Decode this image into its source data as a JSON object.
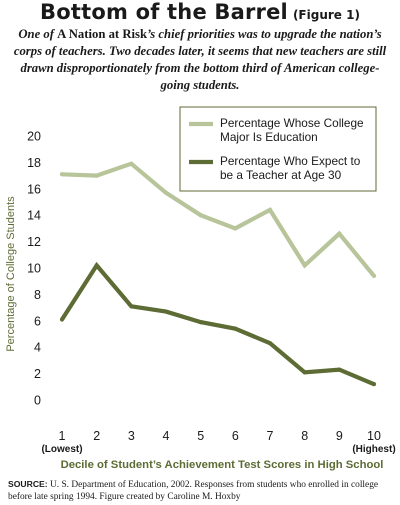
{
  "header": {
    "title": "Bottom of the Barrel",
    "figure": "(Figure 1)",
    "subtitle_pre": "One of ",
    "subtitle_em": "A Nation at Risk",
    "subtitle_post": "’s chief priorities was to upgrade the nation’s corps of teachers. Two decades later, it seems that new teachers are still drawn disproportionately from the bottom third of American college-going students."
  },
  "chart_data": {
    "type": "line",
    "xlabel": "Decile of Student’s Achievement Test Scores in High School",
    "ylabel": "Percentage of College Students",
    "xlim": [
      1,
      10
    ],
    "ylim": [
      0,
      20
    ],
    "x": [
      1,
      2,
      3,
      4,
      5,
      6,
      7,
      8,
      9,
      10
    ],
    "x_tick_labels": [
      "1",
      "2",
      "3",
      "4",
      "5",
      "6",
      "7",
      "8",
      "9",
      "10"
    ],
    "x_tick_sublabels": [
      "(Lowest)",
      "",
      "",
      "",
      "",
      "",
      "",
      "",
      "",
      "(Highest)"
    ],
    "y_ticks": [
      0,
      2,
      4,
      6,
      8,
      10,
      12,
      14,
      16,
      18,
      20
    ],
    "grid": false,
    "legend_position": "top-right",
    "series": [
      {
        "name": "Percentage Whose College Major Is Education",
        "legend_lines": [
          "Percentage Whose College",
          "Major Is Education"
        ],
        "color": "#b8c49a",
        "values": [
          17.1,
          17.0,
          17.9,
          15.7,
          14.0,
          13.0,
          14.4,
          10.2,
          12.6,
          9.4
        ]
      },
      {
        "name": "Percentage Who Expect to be a Teacher at Age 30",
        "legend_lines": [
          "Percentage Who Expect to",
          "be a Teacher at Age 30"
        ],
        "color": "#5d6b34",
        "values": [
          6.1,
          10.2,
          7.1,
          6.7,
          5.9,
          5.4,
          4.3,
          2.1,
          2.3,
          1.2
        ]
      }
    ]
  },
  "colors": {
    "axis_label": "#5d6b34",
    "legend_border": "#5d6b34"
  },
  "source": {
    "label": "SOURCE:",
    "text": " U. S. Department of Education, 2002. Responses from students who enrolled in college before late spring 1994. Figure created by Caroline M. Hoxby"
  }
}
